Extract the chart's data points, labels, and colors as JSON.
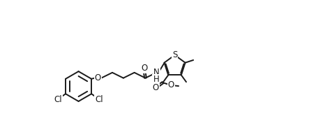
{
  "bg_color": "#ffffff",
  "line_color": "#1a1a1a",
  "line_width": 1.4,
  "font_size": 8.5,
  "fig_width": 4.66,
  "fig_height": 1.96,
  "dpi": 100,
  "xlim": [
    0,
    13
  ],
  "ylim": [
    -3,
    5
  ]
}
